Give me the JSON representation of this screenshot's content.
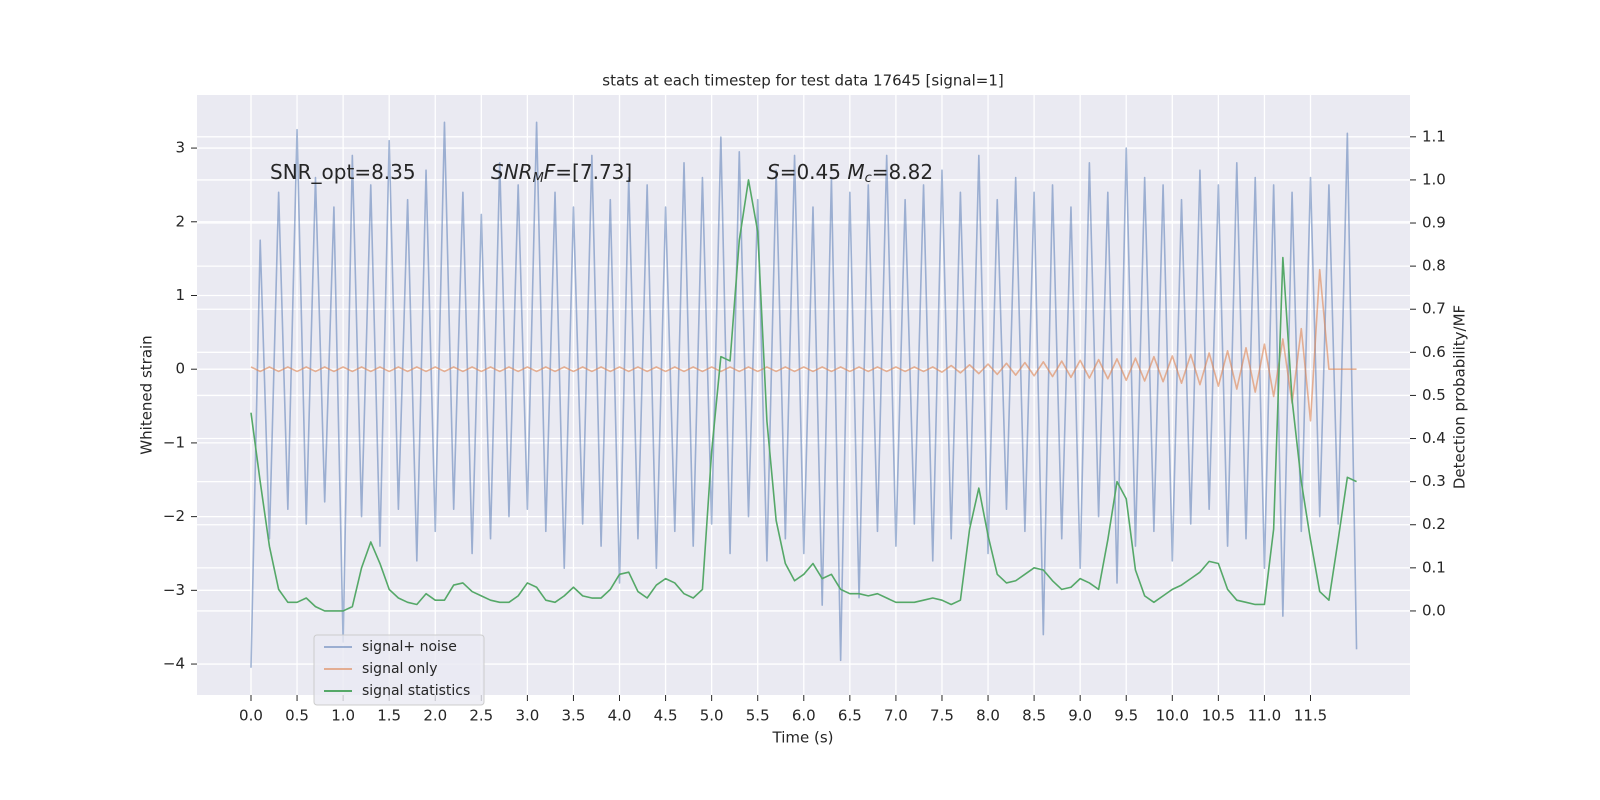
{
  "chart_data": {
    "type": "line",
    "title": "stats at each timestep for test data 17645 [signal=1]",
    "x_label": "Time (s)",
    "y_label": "Whitened strain",
    "y2_label": "Detection probability/MF",
    "xlim": [
      -0.586,
      12.58
    ],
    "ylim": [
      -4.42,
      3.72
    ],
    "y2lim": [
      -0.195,
      1.197
    ],
    "xticks": [
      {
        "value": 0,
        "label": "0.0"
      },
      0.5,
      {
        "value": 1,
        "label": "1.0"
      },
      1.5,
      {
        "value": 2,
        "label": "2.0"
      },
      2.5,
      {
        "value": 3,
        "label": "3.0"
      },
      3.5,
      {
        "value": 4,
        "label": "4.0"
      },
      4.5,
      {
        "value": 5,
        "label": "5.0"
      },
      5.5,
      {
        "value": 6,
        "label": "6.0"
      },
      6.5,
      {
        "value": 7,
        "label": "7.0"
      },
      7.5,
      {
        "value": 8,
        "label": "8.0"
      },
      8.5,
      {
        "value": 9,
        "label": "9.0"
      },
      9.5,
      {
        "value": 10,
        "label": "10.0"
      },
      10.5,
      {
        "value": 11,
        "label": "11.0"
      },
      11.5
    ],
    "yticks": [
      {
        "value": -4,
        "label": "−4"
      },
      {
        "value": -3,
        "label": "−3"
      },
      {
        "value": -2,
        "label": "−2"
      },
      {
        "value": -1,
        "label": "−1"
      },
      0,
      1,
      2,
      3
    ],
    "y2ticks": [
      {
        "value": 0,
        "label": "0.0"
      },
      0.1,
      0.2,
      0.3,
      0.4,
      0.5,
      0.6,
      0.7,
      0.8,
      0.9,
      {
        "value": 1,
        "label": "1.0"
      },
      1.1
    ],
    "grid": true,
    "legend": "lower left",
    "annotations": [
      [
        {
          "text": "SNR_opt=8.35"
        }
      ],
      [
        {
          "text": "SNR",
          "style": "italic"
        },
        {
          "text": "M",
          "style": "italic-sub"
        },
        {
          "text": "F",
          "style": "italic"
        },
        {
          "text": "=[7.73]"
        }
      ],
      [
        {
          "text": "S",
          "style": "italic"
        },
        {
          "text": "=0.45   "
        },
        {
          "text": "M",
          "style": "italic"
        },
        {
          "text": "c",
          "style": "italic-sub"
        },
        {
          "text": "=8.82"
        }
      ]
    ],
    "x": [
      0,
      0.1,
      0.2,
      0.3,
      0.4,
      0.5,
      0.6,
      0.7,
      0.8,
      0.9,
      1,
      1.1,
      1.2,
      1.3,
      1.4,
      1.5,
      1.6,
      1.7,
      1.8,
      1.9,
      2,
      2.1,
      2.2,
      2.3,
      2.4,
      2.5,
      2.6,
      2.7,
      2.8,
      2.9,
      3,
      3.1,
      3.2,
      3.3,
      3.4,
      3.5,
      3.6,
      3.7,
      3.8,
      3.9,
      4,
      4.1,
      4.2,
      4.3,
      4.4,
      4.5,
      4.6,
      4.7,
      4.8,
      4.9,
      5,
      5.1,
      5.2,
      5.3,
      5.4,
      5.5,
      5.6,
      5.7,
      5.8,
      5.9,
      6,
      6.1,
      6.2,
      6.3,
      6.4,
      6.5,
      6.6,
      6.7,
      6.8,
      6.9,
      7,
      7.1,
      7.2,
      7.3,
      7.4,
      7.5,
      7.6,
      7.7,
      7.8,
      7.9,
      8,
      8.1,
      8.2,
      8.3,
      8.4,
      8.5,
      8.6,
      8.7,
      8.8,
      8.9,
      9,
      9.1,
      9.2,
      9.3,
      9.4,
      9.5,
      9.6,
      9.7,
      9.8,
      9.9,
      10,
      10.1,
      10.2,
      10.3,
      10.4,
      10.5,
      10.6,
      10.7,
      10.8,
      10.9,
      11,
      11.1,
      11.2,
      11.3,
      11.4,
      11.5,
      11.6,
      11.7,
      11.8,
      11.9,
      12
    ],
    "series": [
      {
        "name": "signal+ noise",
        "color": "#4c72b0",
        "opacity": 0.5,
        "axis": "y",
        "values": [
          -4.05,
          1.75,
          -2.3,
          2.4,
          -1.9,
          3.25,
          -2.1,
          2.6,
          -1.8,
          2.2,
          -3.7,
          2.9,
          -2.0,
          2.5,
          -2.4,
          3.1,
          -1.9,
          2.3,
          -2.6,
          2.7,
          -2.2,
          3.35,
          -1.9,
          2.4,
          -2.5,
          2.1,
          -2.3,
          2.8,
          -2.0,
          2.5,
          -1.9,
          3.35,
          -2.2,
          2.4,
          -2.7,
          2.2,
          -2.1,
          2.9,
          -2.4,
          2.3,
          -2.9,
          2.6,
          -2.3,
          2.5,
          -2.7,
          2.2,
          -2.2,
          2.8,
          -2.4,
          2.6,
          -2.1,
          3.15,
          -2.5,
          2.95,
          -2.0,
          2.3,
          -2.6,
          2.7,
          -2.3,
          2.9,
          -2.5,
          2.2,
          -3.2,
          2.6,
          -3.95,
          2.4,
          -3.1,
          2.5,
          -2.2,
          2.9,
          -2.4,
          2.3,
          -2.1,
          2.5,
          -2.6,
          2.7,
          -2.3,
          2.4,
          -2.1,
          2.9,
          -2.5,
          2.3,
          -1.9,
          2.6,
          -2.2,
          2.4,
          -3.6,
          2.5,
          -2.3,
          2.2,
          -2.7,
          2.8,
          -2.0,
          2.4,
          -2.9,
          3.0,
          -2.4,
          2.6,
          -2.2,
          2.5,
          -2.6,
          2.3,
          -2.1,
          2.7,
          -1.9,
          2.5,
          -2.4,
          2.8,
          -2.3,
          2.6,
          -2.7,
          2.5,
          -3.35,
          2.4,
          -2.2,
          2.6,
          -2.0,
          2.5,
          -2.1,
          3.2,
          -3.8
        ]
      },
      {
        "name": "signal only",
        "color": "#dd8452",
        "opacity": 0.6,
        "axis": "y",
        "values": [
          0.03,
          -0.03,
          0.03,
          -0.03,
          0.03,
          -0.03,
          0.03,
          -0.03,
          0.03,
          -0.03,
          0.03,
          -0.03,
          0.03,
          -0.03,
          0.03,
          -0.03,
          0.03,
          -0.03,
          0.03,
          -0.03,
          0.03,
          -0.03,
          0.03,
          -0.03,
          0.03,
          -0.03,
          0.03,
          -0.03,
          0.03,
          -0.03,
          0.03,
          -0.03,
          0.03,
          -0.03,
          0.03,
          -0.03,
          0.03,
          -0.03,
          0.03,
          -0.03,
          0.03,
          -0.03,
          0.03,
          -0.03,
          0.03,
          -0.03,
          0.03,
          -0.03,
          0.03,
          -0.03,
          0.03,
          -0.03,
          0.03,
          -0.03,
          0.03,
          -0.03,
          0.03,
          -0.03,
          0.03,
          -0.03,
          0.03,
          -0.03,
          0.03,
          -0.03,
          0.03,
          -0.03,
          0.03,
          -0.03,
          0.03,
          -0.03,
          0.03,
          -0.03,
          0.03,
          -0.03,
          0.03,
          -0.04,
          0.05,
          -0.05,
          0.06,
          -0.06,
          0.07,
          -0.07,
          0.08,
          -0.08,
          0.09,
          -0.09,
          0.1,
          -0.1,
          0.11,
          -0.11,
          0.12,
          -0.12,
          0.13,
          -0.13,
          0.14,
          -0.15,
          0.15,
          -0.16,
          0.17,
          -0.17,
          0.18,
          -0.19,
          0.2,
          -0.21,
          0.22,
          -0.23,
          0.25,
          -0.27,
          0.29,
          -0.31,
          0.34,
          -0.37,
          0.41,
          -0.46,
          0.55,
          -0.7,
          1.35,
          0,
          0,
          0,
          0
        ]
      },
      {
        "name": "signal statistics",
        "color": "#55a868",
        "opacity": 1,
        "axis": "y2",
        "values": [
          0.46,
          0.3,
          0.15,
          0.05,
          0.02,
          0.02,
          0.03,
          0.01,
          0,
          0,
          0,
          0.01,
          0.1,
          0.16,
          0.11,
          0.05,
          0.03,
          0.02,
          0.015,
          0.04,
          0.025,
          0.025,
          0.06,
          0.065,
          0.045,
          0.035,
          0.025,
          0.02,
          0.02,
          0.035,
          0.065,
          0.055,
          0.025,
          0.02,
          0.035,
          0.055,
          0.035,
          0.03,
          0.03,
          0.05,
          0.085,
          0.09,
          0.045,
          0.03,
          0.06,
          0.075,
          0.065,
          0.04,
          0.03,
          0.05,
          0.37,
          0.59,
          0.58,
          0.86,
          1.0,
          0.88,
          0.44,
          0.21,
          0.11,
          0.07,
          0.085,
          0.11,
          0.075,
          0.085,
          0.05,
          0.04,
          0.04,
          0.035,
          0.04,
          0.03,
          0.02,
          0.02,
          0.02,
          0.025,
          0.03,
          0.025,
          0.015,
          0.025,
          0.19,
          0.285,
          0.175,
          0.085,
          0.065,
          0.07,
          0.085,
          0.1,
          0.095,
          0.07,
          0.05,
          0.055,
          0.075,
          0.065,
          0.05,
          0.165,
          0.3,
          0.26,
          0.095,
          0.035,
          0.02,
          0.035,
          0.05,
          0.06,
          0.075,
          0.09,
          0.115,
          0.11,
          0.05,
          0.025,
          0.02,
          0.015,
          0.015,
          0.19,
          0.82,
          0.49,
          0.3,
          0.165,
          0.045,
          0.025,
          0.165,
          0.31,
          0.3
        ]
      }
    ]
  }
}
